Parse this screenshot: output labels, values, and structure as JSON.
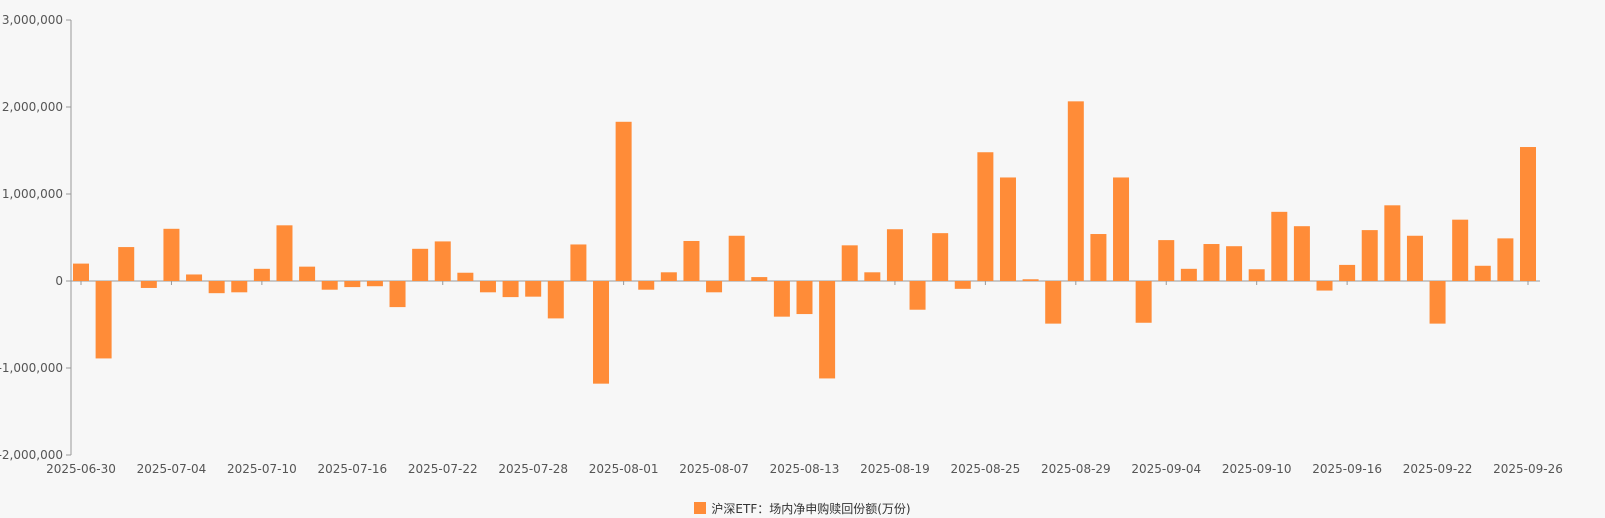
{
  "chart_data": {
    "type": "bar",
    "series": [
      {
        "name": "沪深ETF：场内净申购赎回份额(万份)",
        "color": "#FF8C38",
        "values": [
          200000,
          -890000,
          390000,
          -80000,
          600000,
          75000,
          -140000,
          -130000,
          140000,
          640000,
          165000,
          -100000,
          -70000,
          -60000,
          -300000,
          370000,
          455000,
          95000,
          -130000,
          -185000,
          -180000,
          -430000,
          420000,
          -1180000,
          1830000,
          -100000,
          100000,
          460000,
          -130000,
          520000,
          45000,
          -410000,
          -380000,
          -1120000,
          410000,
          100000,
          595000,
          -330000,
          550000,
          -90000,
          1480000,
          1190000,
          20000,
          -490000,
          2065000,
          540000,
          1190000,
          -480000,
          470000,
          140000,
          425000,
          400000,
          135000,
          795000,
          630000,
          -110000,
          185000,
          585000,
          870000,
          520000,
          -490000,
          705000,
          175000,
          490000,
          1540000
        ]
      }
    ],
    "x_tick_labels": [
      "2025-06-30",
      "2025-07-04",
      "2025-07-10",
      "2025-07-16",
      "2025-07-22",
      "2025-07-28",
      "2025-08-01",
      "2025-08-07",
      "2025-08-13",
      "2025-08-19",
      "2025-08-25",
      "2025-08-29",
      "2025-09-04",
      "2025-09-10",
      "2025-09-16",
      "2025-09-22",
      "2025-09-26"
    ],
    "y_tick_labels": [
      "3,000,000",
      "2,000,000",
      "1,000,000",
      "0",
      "-1,000,000",
      "-2,000,000"
    ],
    "ylim": [
      -2000000,
      3000000
    ],
    "legend_position": "bottom-center",
    "grid": false
  }
}
